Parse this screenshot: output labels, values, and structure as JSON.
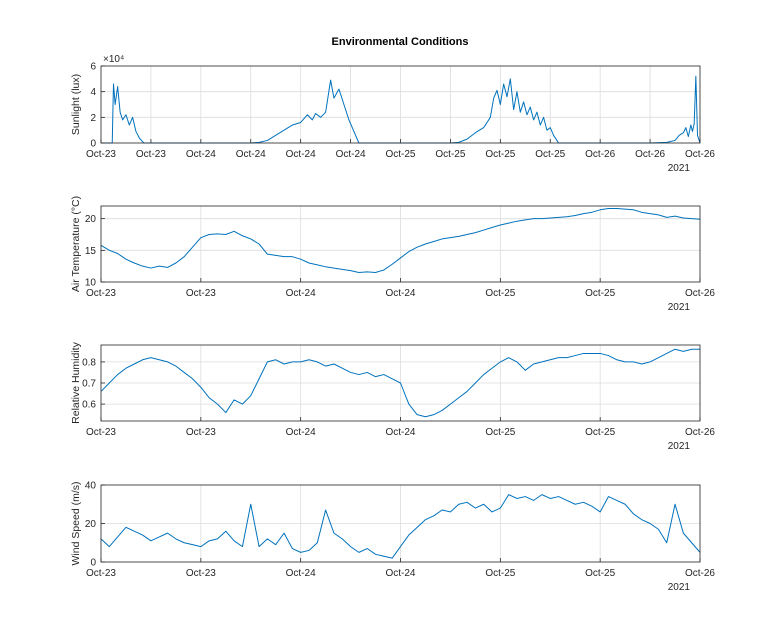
{
  "figure": {
    "title": "Environmental Conditions",
    "colors": {
      "line": "#0072BD",
      "axis": "#262626",
      "grid": "#dcdcdc",
      "background": "#ffffff"
    }
  },
  "chart_data": [
    {
      "type": "line",
      "ylabel": "Sunlight (lux)",
      "ylim": [
        0,
        60000
      ],
      "yticks": [
        0,
        20000,
        40000,
        60000
      ],
      "ytick_labels": [
        "0",
        "2",
        "4",
        "6"
      ],
      "y_exponent_label": "×10⁴",
      "xlim_hours": [
        0,
        72
      ],
      "xtick_hours": [
        0,
        6,
        12,
        18,
        24,
        30,
        36,
        42,
        48,
        54,
        60,
        66,
        72
      ],
      "xtick_labels": [
        "Oct-23",
        "Oct-23",
        "Oct-24",
        "Oct-24",
        "Oct-24",
        "Oct-24",
        "Oct-25",
        "Oct-25",
        "Oct-25",
        "Oct-25",
        "Oct-26",
        "Oct-26",
        "Oct-26"
      ],
      "x_year_label": "2021",
      "grid": true,
      "x": [
        0,
        1.35,
        1.5,
        1.7,
        2.0,
        2.3,
        2.6,
        3.0,
        3.4,
        3.8,
        4.2,
        4.6,
        5.0,
        5.2,
        6,
        10,
        14,
        18,
        19,
        20,
        21,
        22,
        23,
        24,
        24.8,
        25.4,
        25.8,
        26.4,
        27.0,
        27.6,
        28.0,
        28.6,
        29.2,
        29.8,
        30.2,
        30.6,
        31,
        36,
        42,
        43,
        44,
        45,
        46,
        46.8,
        47.2,
        47.6,
        48.0,
        48.4,
        48.8,
        49.2,
        49.6,
        50.0,
        50.4,
        50.8,
        51.2,
        51.6,
        52.0,
        52.4,
        52.8,
        53.2,
        53.6,
        54.0,
        54.4,
        54.8,
        55,
        60,
        66,
        68,
        69,
        69.5,
        70.0,
        70.3,
        70.6,
        70.9,
        71.1,
        71.3,
        71.5,
        71.7,
        72
      ],
      "values": [
        0,
        0,
        46000,
        30000,
        44000,
        24000,
        18000,
        22000,
        14000,
        20000,
        9000,
        4000,
        1000,
        0,
        0,
        0,
        0,
        0,
        500,
        2000,
        6000,
        10000,
        14000,
        16000,
        22000,
        18000,
        23000,
        20000,
        24000,
        49000,
        35000,
        42000,
        30000,
        18000,
        12000,
        6000,
        0,
        0,
        0,
        500,
        3000,
        8000,
        12000,
        20000,
        35000,
        41000,
        30000,
        46000,
        36000,
        50000,
        26000,
        40000,
        24000,
        32000,
        22000,
        28000,
        18000,
        24000,
        14000,
        20000,
        10000,
        12000,
        6000,
        2000,
        0,
        0,
        0,
        500,
        2000,
        6000,
        8000,
        12000,
        5000,
        14000,
        9000,
        15000,
        52000,
        6000,
        0
      ]
    },
    {
      "type": "line",
      "ylabel": "Air Temperature (°C)",
      "ylim": [
        10,
        22
      ],
      "yticks": [
        10,
        15,
        20
      ],
      "ytick_labels": [
        "10",
        "15",
        "20"
      ],
      "xlim_hours": [
        0,
        72
      ],
      "xtick_hours": [
        0,
        12,
        24,
        36,
        48,
        60,
        72
      ],
      "xtick_labels": [
        "Oct-23",
        "Oct-23",
        "Oct-24",
        "Oct-24",
        "Oct-25",
        "Oct-25",
        "Oct-26"
      ],
      "x_year_label": "2021",
      "grid": true,
      "x": [
        0,
        1,
        2,
        3,
        4,
        5,
        6,
        7,
        8,
        9,
        10,
        11,
        12,
        13,
        14,
        15,
        16,
        17,
        18,
        19,
        20,
        21,
        22,
        23,
        24,
        25,
        26,
        27,
        28,
        29,
        30,
        31,
        32,
        33,
        34,
        35,
        36,
        37,
        38,
        39,
        40,
        41,
        42,
        43,
        44,
        45,
        46,
        47,
        48,
        49,
        50,
        51,
        52,
        53,
        54,
        55,
        56,
        57,
        58,
        59,
        60,
        61,
        62,
        63,
        64,
        65,
        66,
        67,
        68,
        69,
        70,
        71,
        72
      ],
      "values": [
        15.8,
        15.0,
        14.5,
        13.6,
        13.0,
        12.5,
        12.2,
        12.5,
        12.3,
        13.0,
        14.0,
        15.5,
        17.0,
        17.5,
        17.6,
        17.5,
        18.0,
        17.3,
        16.8,
        16.0,
        14.4,
        14.2,
        14.0,
        14.0,
        13.6,
        13.0,
        12.7,
        12.4,
        12.2,
        12.0,
        11.8,
        11.5,
        11.6,
        11.5,
        11.9,
        12.8,
        13.8,
        14.8,
        15.5,
        16.0,
        16.4,
        16.8,
        17.0,
        17.2,
        17.5,
        17.8,
        18.2,
        18.6,
        19.0,
        19.3,
        19.6,
        19.8,
        20.0,
        20.0,
        20.1,
        20.2,
        20.3,
        20.5,
        20.8,
        21.0,
        21.4,
        21.6,
        21.6,
        21.5,
        21.4,
        21.0,
        20.8,
        20.6,
        20.2,
        20.4,
        20.1,
        20.0,
        19.9
      ]
    },
    {
      "type": "line",
      "ylabel": "Relative Humidity",
      "ylim": [
        0.52,
        0.88
      ],
      "yticks": [
        0.6,
        0.7,
        0.8
      ],
      "ytick_labels": [
        "0.6",
        "0.7",
        "0.8"
      ],
      "xlim_hours": [
        0,
        72
      ],
      "xtick_hours": [
        0,
        12,
        24,
        36,
        48,
        60,
        72
      ],
      "xtick_labels": [
        "Oct-23",
        "Oct-23",
        "Oct-24",
        "Oct-24",
        "Oct-25",
        "Oct-25",
        "Oct-26"
      ],
      "x_year_label": "2021",
      "grid": true,
      "x": [
        0,
        1,
        2,
        3,
        4,
        5,
        6,
        7,
        8,
        9,
        10,
        11,
        12,
        13,
        14,
        15,
        16,
        17,
        18,
        19,
        20,
        21,
        22,
        23,
        24,
        25,
        26,
        27,
        28,
        29,
        30,
        31,
        32,
        33,
        34,
        35,
        36,
        37,
        38,
        39,
        40,
        41,
        42,
        43,
        44,
        45,
        46,
        47,
        48,
        49,
        50,
        51,
        52,
        53,
        54,
        55,
        56,
        57,
        58,
        59,
        60,
        61,
        62,
        63,
        64,
        65,
        66,
        67,
        68,
        69,
        70,
        71,
        72
      ],
      "values": [
        0.66,
        0.7,
        0.74,
        0.77,
        0.79,
        0.81,
        0.82,
        0.81,
        0.8,
        0.78,
        0.75,
        0.72,
        0.68,
        0.63,
        0.6,
        0.56,
        0.62,
        0.6,
        0.64,
        0.72,
        0.8,
        0.81,
        0.79,
        0.8,
        0.8,
        0.81,
        0.8,
        0.78,
        0.79,
        0.77,
        0.75,
        0.74,
        0.75,
        0.73,
        0.74,
        0.72,
        0.7,
        0.6,
        0.55,
        0.54,
        0.55,
        0.57,
        0.6,
        0.63,
        0.66,
        0.7,
        0.74,
        0.77,
        0.8,
        0.82,
        0.8,
        0.76,
        0.79,
        0.8,
        0.81,
        0.82,
        0.82,
        0.83,
        0.84,
        0.84,
        0.84,
        0.83,
        0.81,
        0.8,
        0.8,
        0.79,
        0.8,
        0.82,
        0.84,
        0.86,
        0.85,
        0.86,
        0.86
      ]
    },
    {
      "type": "line",
      "ylabel": "Wind Speed (m/s)",
      "ylim": [
        0,
        40
      ],
      "yticks": [
        0,
        20,
        40
      ],
      "ytick_labels": [
        "0",
        "20",
        "40"
      ],
      "xlim_hours": [
        0,
        72
      ],
      "xtick_hours": [
        0,
        12,
        24,
        36,
        48,
        60,
        72
      ],
      "xtick_labels": [
        "Oct-23",
        "Oct-23",
        "Oct-24",
        "Oct-24",
        "Oct-25",
        "Oct-25",
        "Oct-26"
      ],
      "x_year_label": "2021",
      "grid": true,
      "x": [
        0,
        1,
        2,
        3,
        4,
        5,
        6,
        7,
        8,
        9,
        10,
        11,
        12,
        13,
        14,
        15,
        16,
        17,
        18,
        19,
        20,
        21,
        22,
        23,
        24,
        25,
        26,
        27,
        28,
        29,
        30,
        31,
        32,
        33,
        34,
        35,
        36,
        37,
        38,
        39,
        40,
        41,
        42,
        43,
        44,
        45,
        46,
        47,
        48,
        49,
        50,
        51,
        52,
        53,
        54,
        55,
        56,
        57,
        58,
        59,
        60,
        61,
        62,
        63,
        64,
        65,
        66,
        67,
        68,
        69,
        70,
        71,
        72
      ],
      "values": [
        12,
        8,
        13,
        18,
        16,
        14,
        11,
        13,
        15,
        12,
        10,
        9,
        8,
        11,
        12,
        16,
        11,
        8,
        30,
        8,
        12,
        9,
        15,
        7,
        5,
        6,
        10,
        27,
        15,
        12,
        8,
        5,
        7,
        4,
        3,
        2,
        8,
        14,
        18,
        22,
        24,
        27,
        26,
        30,
        31,
        28,
        30,
        26,
        28,
        35,
        33,
        34,
        32,
        35,
        33,
        34,
        32,
        30,
        31,
        29,
        26,
        34,
        32,
        30,
        25,
        22,
        20,
        17,
        10,
        30,
        15,
        10,
        5
      ]
    }
  ]
}
